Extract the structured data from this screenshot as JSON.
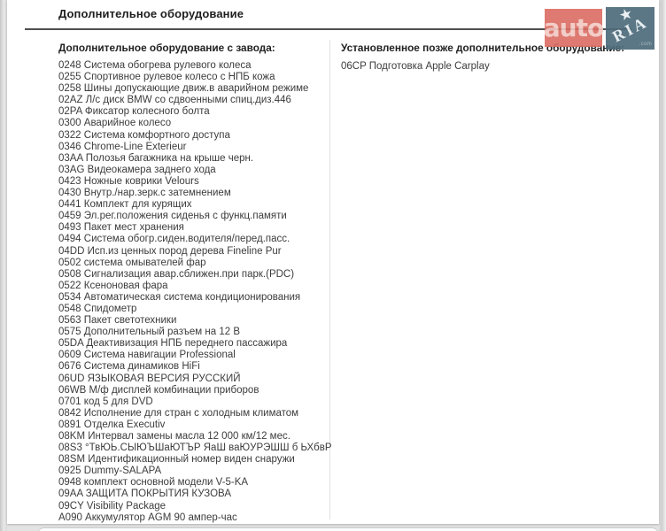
{
  "page": {
    "title": "Дополнительное оборудование"
  },
  "logo": {
    "auto_text": "auto",
    "ria_text": "RIA",
    "ria_tld": ".com",
    "auto_bg": "#db6c62",
    "ria_bg": "#4e6b7b"
  },
  "factory": {
    "header": "Дополнительное оборудование с завода:",
    "items": [
      "0248 Система обогрева рулевого колеса",
      "0255 Спортивное рулевое колесо с НПБ кожа",
      "0258 Шины допускающие движ.в аварийном режиме",
      "02AZ Л/с диск BMW со сдвоенными спиц.диз.446",
      "02PA Фиксатор колесного болта",
      "0300 Аварийное колесо",
      "0322 Система комфортного доступа",
      "0346 Chrome-Line Exterieur",
      "03AA Полозья багажника на крыше черн.",
      "03AG Видеокамера заднего хода",
      "0423 Ножные коврики Velours",
      "0430 Внутр./нар.зерк.с затемнением",
      "0441 Комплект для курящих",
      "0459 Эл.рег.положения сиденья с функц.памяти",
      "0493 Пакет мест хранения",
      "0494 Система обогр.сиден.водителя/перед.пасс.",
      "04DD Исп.из ценных пород дерева Fineline Pur",
      "0502 система омывателей фар",
      "0508 Сигнализация авар.сближен.при парк.(PDC)",
      "0522 Ксеноновая фара",
      "0534 Автоматическая система кондиционирования",
      "0548 Спидометр",
      "0563 Пакет светотехники",
      "0575 Дополнительный разъем на 12 В",
      "05DA Деактивизация НПБ переднего пассажира",
      "0609 Система навигации Professional",
      "0676 Система динамиков HiFi",
      "06UD ЯЗЫКОВАЯ ВЕРСИЯ РУССКИЙ",
      "06WB М/ф дисплей комбинации приборов",
      "0701 код 5 для DVD",
      "0842 Исполнение для стран с холодным климатом",
      "0891 Отделка Executiv",
      "08KM Интервал замены масла 12 000 км/12 мес.",
      "08S3 °ТвЮЬ.СЫЮЪШаЮТЪР ЯаШ ваЮУРЭШШ б ЬХбвР",
      "08SM Идентификационный номер виден снаружи",
      "0925 Dummy-SALAPA",
      "0948 комплект основной модели V-5-KA",
      "09AA ЗАЩИТА ПОКРЫТИЯ КУЗОВА",
      "09CY Visibility Package",
      "A090 Аккумулятор AGM 90 ампер-час"
    ]
  },
  "installed": {
    "header": "Установленное позже дополнительное оборудование:",
    "items": [
      "06CP Подготовка Apple Carplay"
    ]
  }
}
